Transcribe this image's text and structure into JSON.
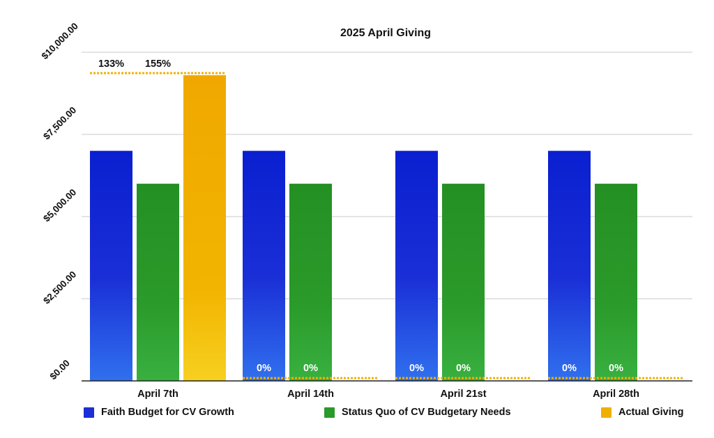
{
  "chart_data": {
    "type": "bar",
    "title": "2025 April Giving",
    "xlabel": "",
    "ylabel": "",
    "ylim": [
      0,
      10000
    ],
    "yticks": [
      "$0.00",
      "$2,500.00",
      "$5,000.00",
      "$7,500.00",
      "$10,000.00"
    ],
    "categories": [
      "April 7th",
      "April 14th",
      "April 21st",
      "April 28th"
    ],
    "series": [
      {
        "name": "Faith Budget for CV Growth",
        "values": [
          7000,
          7000,
          7000,
          7000
        ],
        "color": "#1a2fd6"
      },
      {
        "name": "Status Quo of CV Budgetary Needs",
        "values": [
          6000,
          6000,
          6000,
          6000
        ],
        "color": "#2a9a2a"
      },
      {
        "name": "Actual Giving",
        "values": [
          9300,
          0,
          0,
          0
        ],
        "color": "#f0b000"
      }
    ],
    "percent_labels": [
      {
        "category": "April 7th",
        "series": "Faith Budget for CV Growth",
        "text": "133%"
      },
      {
        "category": "April 7th",
        "series": "Status Quo of CV Budgetary Needs",
        "text": "155%"
      },
      {
        "category": "April 14th",
        "series": "Faith Budget for CV Growth",
        "text": "0%"
      },
      {
        "category": "April 14th",
        "series": "Status Quo of CV Budgetary Needs",
        "text": "0%"
      },
      {
        "category": "April 21st",
        "series": "Faith Budget for CV Growth",
        "text": "0%"
      },
      {
        "category": "April 21st",
        "series": "Status Quo of CV Budgetary Needs",
        "text": "0%"
      },
      {
        "category": "April 28th",
        "series": "Faith Budget for CV Growth",
        "text": "0%"
      },
      {
        "category": "April 28th",
        "series": "Status Quo of CV Budgetary Needs",
        "text": "0%"
      }
    ],
    "grid": true,
    "legend_position": "bottom"
  }
}
